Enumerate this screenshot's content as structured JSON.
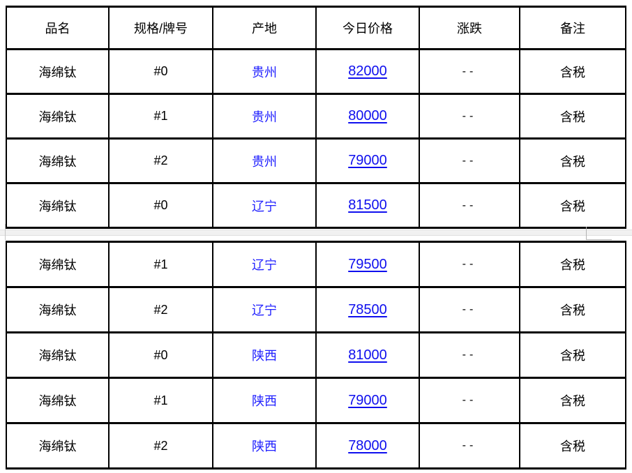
{
  "price_table": {
    "columns": [
      {
        "key": "name",
        "label": "品名"
      },
      {
        "key": "spec",
        "label": "规格/牌号"
      },
      {
        "key": "origin",
        "label": "产地"
      },
      {
        "key": "price",
        "label": "今日价格"
      },
      {
        "key": "change",
        "label": "涨跌"
      },
      {
        "key": "note",
        "label": "备注"
      }
    ],
    "rows": [
      {
        "name": "海绵钛",
        "spec": "#0",
        "origin": "贵州",
        "price": "82000",
        "change": "--",
        "note": "含税"
      },
      {
        "name": "海绵钛",
        "spec": "#1",
        "origin": "贵州",
        "price": "80000",
        "change": "--",
        "note": "含税"
      },
      {
        "name": "海绵钛",
        "spec": "#2",
        "origin": "贵州",
        "price": "79000",
        "change": "--",
        "note": "含税"
      },
      {
        "name": "海绵钛",
        "spec": "#0",
        "origin": "辽宁",
        "price": "81500",
        "change": "--",
        "note": "含税"
      },
      {
        "name": "海绵钛",
        "spec": "#1",
        "origin": "辽宁",
        "price": "79500",
        "change": "--",
        "note": "含税"
      },
      {
        "name": "海绵钛",
        "spec": "#2",
        "origin": "辽宁",
        "price": "78500",
        "change": "--",
        "note": "含税"
      },
      {
        "name": "海绵钛",
        "spec": "#0",
        "origin": "陕西",
        "price": "81000",
        "change": "--",
        "note": "含税"
      },
      {
        "name": "海绵钛",
        "spec": "#1",
        "origin": "陕西",
        "price": "79000",
        "change": "--",
        "note": "含税"
      },
      {
        "name": "海绵钛",
        "spec": "#2",
        "origin": "陕西",
        "price": "78000",
        "change": "--",
        "note": "含税"
      }
    ],
    "section_one_row_count": 4
  },
  "colors": {
    "origin_link_blue": "#1d1dff",
    "price_link_blue": "#0f0fee",
    "table_border_black": "#000000",
    "divider_gray": "#f1f1f1"
  }
}
